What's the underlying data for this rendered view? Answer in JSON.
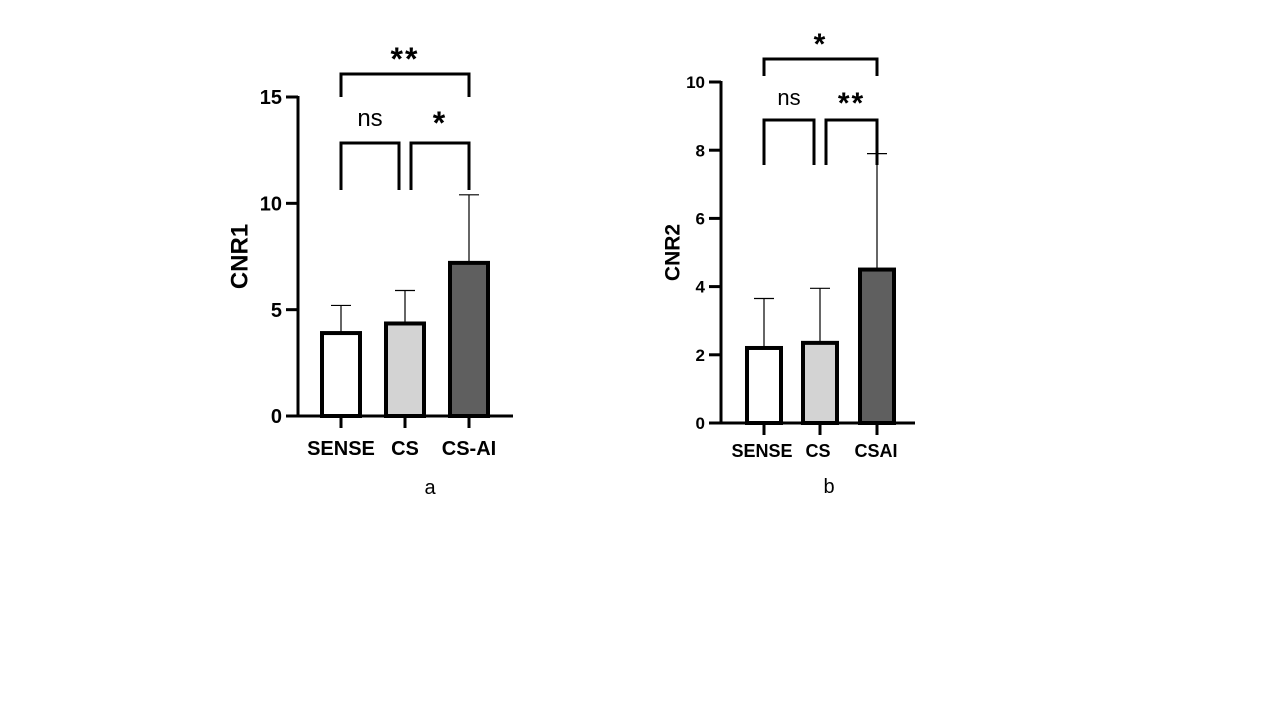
{
  "chart_data": [
    {
      "type": "bar",
      "panel": "a",
      "ylabel": "CNR1",
      "xlabel": "",
      "ylim": [
        0,
        15
      ],
      "yticks": [
        0,
        5,
        10,
        15
      ],
      "categories": [
        "SENSE",
        "CS",
        "CS-AI"
      ],
      "values": [
        3.9,
        4.35,
        7.2
      ],
      "error_upper": [
        5.2,
        5.9,
        10.4
      ],
      "bar_colors": [
        "#ffffff",
        "#d3d3d3",
        "#5f5f5f"
      ],
      "significance": [
        {
          "from": 0,
          "to": 1,
          "label": "ns",
          "level": 1
        },
        {
          "from": 1,
          "to": 2,
          "label": "*",
          "level": 1
        },
        {
          "from": 0,
          "to": 2,
          "label": "**",
          "level": 2
        }
      ],
      "grid": false
    },
    {
      "type": "bar",
      "panel": "b",
      "ylabel": "CNR2",
      "xlabel": "",
      "ylim": [
        0,
        10
      ],
      "yticks": [
        0,
        2,
        4,
        6,
        8,
        10
      ],
      "categories": [
        "SENSE",
        "CS",
        "CSAI"
      ],
      "values": [
        2.2,
        2.35,
        4.5
      ],
      "error_upper": [
        3.65,
        3.95,
        7.9
      ],
      "bar_colors": [
        "#ffffff",
        "#d3d3d3",
        "#5f5f5f"
      ],
      "significance": [
        {
          "from": 0,
          "to": 1,
          "label": "ns",
          "level": 1
        },
        {
          "from": 1,
          "to": 2,
          "label": "**",
          "level": 1
        },
        {
          "from": 0,
          "to": 2,
          "label": "*",
          "level": 2
        }
      ],
      "grid": false
    }
  ]
}
